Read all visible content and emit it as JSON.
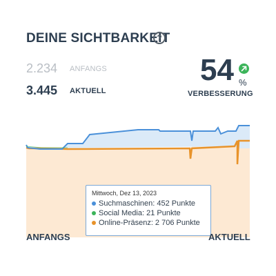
{
  "header": {
    "title": "DEINE SICHTBARKEIT",
    "help_icon": "?"
  },
  "stats": [
    {
      "value": "2.234",
      "label": "ANFANGS"
    },
    {
      "value": "3.445",
      "label": "AKTUELL"
    }
  ],
  "improvement": {
    "value": "54",
    "unit": "%",
    "label": "VERBESSERUNG",
    "direction_icon": "arrow-up-right-icon"
  },
  "tooltip": {
    "date": "Mittwoch, Dez 13, 2023",
    "rows": [
      {
        "text": "Suchmaschinen: 452 Punkte",
        "color": "#4a90d9"
      },
      {
        "text": "Social Media: 21 Punkte",
        "color": "#3cb45a"
      },
      {
        "text": "Online-Präsenz: 2 706 Punkte",
        "color": "#e8932a"
      }
    ]
  },
  "axis": {
    "start_label": "ANFANGS",
    "end_label": "AKTUELL"
  },
  "colors": {
    "search": "#4a90d9",
    "search_fill": "#dbeaf8",
    "social": "#3cb45a",
    "presence": "#e8932a",
    "presence_fill": "#fde9d3",
    "badge": "#3cb45a"
  }
}
